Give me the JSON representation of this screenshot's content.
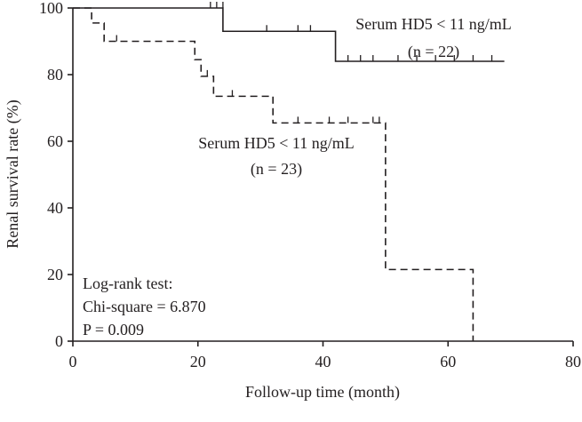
{
  "chart_data": {
    "type": "line",
    "title": "",
    "xlabel": "Follow-up time (month)",
    "ylabel": "Renal survival rate (%)",
    "xlim": [
      0,
      80
    ],
    "ylim": [
      0,
      100
    ],
    "x_ticks": [
      0,
      20,
      40,
      60,
      80
    ],
    "y_ticks": [
      0,
      20,
      40,
      60,
      80,
      100
    ],
    "x_tick_labels": [
      "0",
      "20",
      "40",
      "60",
      "80"
    ],
    "y_tick_labels": [
      "0",
      "20",
      "40",
      "60",
      "80",
      "100"
    ],
    "grid": false,
    "series": [
      {
        "line_style": "solid",
        "label_lines": [
          "Serum HD5 < 11 ng/mL",
          "(n = 22)"
        ],
        "steps": [
          [
            0,
            100
          ],
          [
            24,
            93
          ],
          [
            42,
            84
          ],
          [
            69,
            84
          ]
        ],
        "censored": [
          [
            22,
            100
          ],
          [
            23,
            100
          ],
          [
            24,
            100
          ],
          [
            31,
            93
          ],
          [
            36,
            93
          ],
          [
            38,
            93
          ],
          [
            44,
            84
          ],
          [
            46,
            84
          ],
          [
            48,
            84
          ],
          [
            52,
            84
          ],
          [
            55,
            84
          ],
          [
            58,
            84
          ],
          [
            61,
            84
          ],
          [
            64,
            84
          ],
          [
            67,
            84
          ]
        ]
      },
      {
        "line_style": "dashed",
        "label_lines": [
          "Serum HD5 < 11 ng/mL",
          "(n = 23)"
        ],
        "steps": [
          [
            0,
            100
          ],
          [
            3,
            95.5
          ],
          [
            5,
            90
          ],
          [
            19.5,
            84.5
          ],
          [
            20.5,
            79.5
          ],
          [
            22.5,
            73.5
          ],
          [
            32,
            65.5
          ],
          [
            50,
            21.5
          ],
          [
            64,
            0
          ]
        ],
        "censored": [
          [
            7,
            90
          ],
          [
            21.5,
            79.5
          ],
          [
            25.5,
            73.5
          ],
          [
            36,
            65.5
          ],
          [
            41,
            65.5
          ],
          [
            44,
            65.5
          ],
          [
            48,
            65.5
          ],
          [
            49,
            65.5
          ]
        ]
      }
    ],
    "annotation_lines": [
      "Log-rank test:",
      "Chi-square = 6.870",
      "P = 0.009"
    ]
  }
}
